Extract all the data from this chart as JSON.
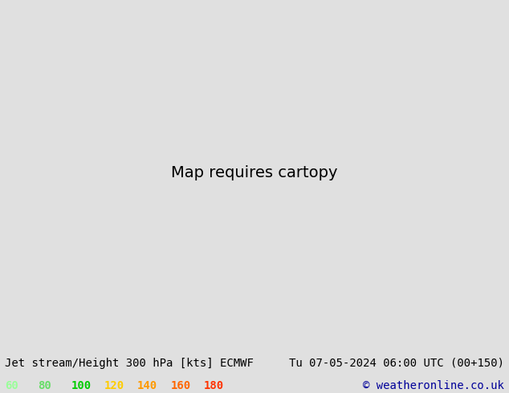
{
  "title_left": "Jet stream/Height 300 hPa [kts] ECMWF",
  "title_right": "Tu 07-05-2024 06:00 UTC (00+150)",
  "copyright": "© weatheronline.co.uk",
  "legend_values": [
    "60",
    "80",
    "100",
    "120",
    "140",
    "160",
    "180"
  ],
  "legend_colors": [
    "#99ff99",
    "#66dd66",
    "#00cc00",
    "#ffcc00",
    "#ff9900",
    "#ff6600",
    "#ff3300"
  ],
  "bg_color": "#e8e8e8",
  "map_bg": "#f0f0f0",
  "title_fontsize": 10,
  "legend_fontsize": 10,
  "copyright_color": "#000099",
  "contour_color": "#000000",
  "land_color": "#c8e6a0",
  "ocean_color": "#d0e8f0",
  "fig_width": 6.34,
  "fig_height": 4.9,
  "dpi": 100
}
